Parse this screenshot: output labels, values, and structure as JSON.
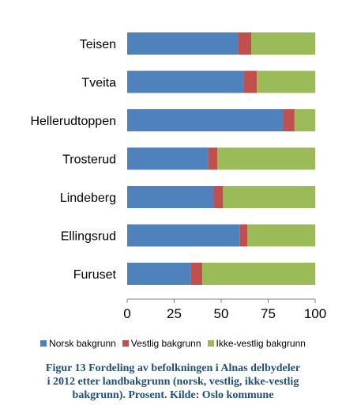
{
  "chart_data": {
    "type": "bar",
    "orientation": "horizontal",
    "stacked": true,
    "categories": [
      "Teisen",
      "Tveita",
      "Hellerudtoppen",
      "Trosterud",
      "Lindeberg",
      "Ellingsrud",
      "Furuset"
    ],
    "series": [
      {
        "name": "Norsk bakgrunn",
        "values": [
          59,
          62,
          83,
          43,
          46,
          60,
          34
        ],
        "color": "#4f81bd"
      },
      {
        "name": "Vestlig bakgrunn",
        "values": [
          7,
          7,
          6,
          5,
          5,
          4,
          6
        ],
        "color": "#c0504d"
      },
      {
        "name": "Ikke-vestlig bakgrunn",
        "values": [
          34,
          31,
          11,
          52,
          49,
          36,
          60
        ],
        "color": "#9bbb59"
      }
    ],
    "xlim": [
      0,
      100
    ],
    "xticks": [
      0,
      25,
      50,
      75,
      100
    ],
    "grid": false,
    "legend_position": "bottom"
  },
  "caption": {
    "line1": "Figur 13 Fordeling av befolkningen i Alnas delbydeler",
    "line2": "i 2012 etter landbakgrunn (norsk, vestlig, ikke-vestlig",
    "line3": "bakgrunn). Prosent. Kilde: Oslo kommune"
  }
}
